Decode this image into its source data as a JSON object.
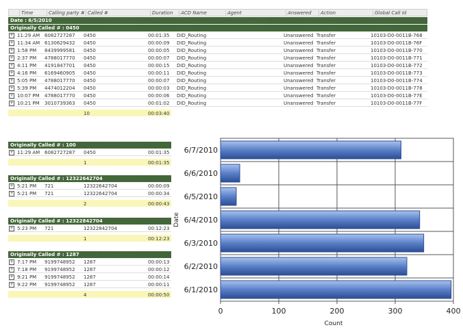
{
  "columns": [
    "Time",
    "Calling party #",
    "Called #",
    "Duration",
    "ACD Name",
    "Agent",
    "Answered",
    "Action",
    "Global Call Id"
  ],
  "date_label": "Date : 6/5/2010",
  "groups": [
    {
      "title": "Originally Called # : 0450",
      "rows": [
        [
          "11:29 AM",
          "6082727287",
          "0450",
          "00:01:35",
          "DID_Routing",
          "",
          "Unanswered",
          "Transfer",
          "10103-D0-0011B-768"
        ],
        [
          "11:34 AM",
          "6130629432",
          "0450",
          "00:00:09",
          "DID_Routing",
          "",
          "Unanswered",
          "Transfer",
          "10103-D0-0011B-76F"
        ],
        [
          "1:58 PM",
          "8439999581",
          "0450",
          "00:00:05",
          "DID_Routing",
          "",
          "Unanswered",
          "Transfer",
          "10103-D0-0011B-770"
        ],
        [
          "2:37 PM",
          "4788017770",
          "0450",
          "00:00:07",
          "DID_Routing",
          "",
          "Unanswered",
          "Transfer",
          "10103-D0-0011B-771"
        ],
        [
          "4:11 PM",
          "4191847701",
          "0450",
          "00:00:15",
          "DID_Routing",
          "",
          "Unanswered",
          "Transfer",
          "10103-D0-0011B-772"
        ],
        [
          "4:16 PM",
          "6169460905",
          "0450",
          "00:00:11",
          "DID_Routing",
          "",
          "Unanswered",
          "Transfer",
          "10103-D0-0011B-773"
        ],
        [
          "5:05 PM",
          "4788017770",
          "0450",
          "00:00:07",
          "DID_Routing",
          "",
          "Unanswered",
          "Transfer",
          "10103-D0-0011B-774"
        ],
        [
          "5:39 PM",
          "4474012204",
          "0450",
          "00:00:03",
          "DID_Routing",
          "",
          "Unanswered",
          "Transfer",
          "10103-D0-0011B-778"
        ],
        [
          "10:07 PM",
          "4788017770",
          "0450",
          "00:00:06",
          "DID_Routing",
          "",
          "Unanswered",
          "Transfer",
          "10103-D0-0011B-77E"
        ],
        [
          "10:21 PM",
          "3010739363",
          "0450",
          "00:01:02",
          "DID_Routing",
          "",
          "Unanswered",
          "Transfer",
          "10103-D0-0011B-77F"
        ]
      ],
      "count": "10",
      "total": "00:03:40"
    },
    {
      "title": "Originally Called # : 100",
      "rows": [
        [
          "11:29 AM",
          "6082727287",
          "0450",
          "00:01:35"
        ]
      ],
      "count": "1",
      "total": "00:01:35"
    },
    {
      "title": "Originally Called # : 12322642704",
      "rows": [
        [
          "5:21 PM",
          "721",
          "12322642704",
          "00:00:09"
        ],
        [
          "5:21 PM",
          "721",
          "12322642704",
          "00:00:34"
        ]
      ],
      "count": "2",
      "total": "00:00:43"
    },
    {
      "title": "Originally Called # : 12322842704",
      "rows": [
        [
          "5:23 PM",
          "721",
          "12322842704",
          "00:12:23"
        ]
      ],
      "count": "1",
      "total": "00:12:23"
    },
    {
      "title": "Originally Called # : 1287",
      "rows": [
        [
          "7:17 PM",
          "9199748952",
          "1287",
          "00:00:13"
        ],
        [
          "7:18 PM",
          "9199748952",
          "1287",
          "00:00:12"
        ],
        [
          "9:21 PM",
          "9199748952",
          "1287",
          "00:00:14"
        ],
        [
          "9:22 PM",
          "9199748952",
          "1287",
          "00:00:11"
        ]
      ],
      "count": "4",
      "total": "00:00:50"
    }
  ],
  "chart_data": {
    "type": "bar",
    "orientation": "horizontal",
    "categories": [
      "6/7/2010",
      "6/6/2010",
      "6/5/2010",
      "6/4/2010",
      "6/3/2010",
      "6/2/2010",
      "6/1/2010"
    ],
    "values": [
      310,
      33,
      27,
      342,
      349,
      320,
      396
    ],
    "xlabel": "Count",
    "ylabel": "Date",
    "xlim": [
      0,
      400
    ],
    "xticks": [
      0,
      100,
      200,
      300,
      400
    ],
    "grid": true,
    "bar_color": "#5a80c8"
  }
}
